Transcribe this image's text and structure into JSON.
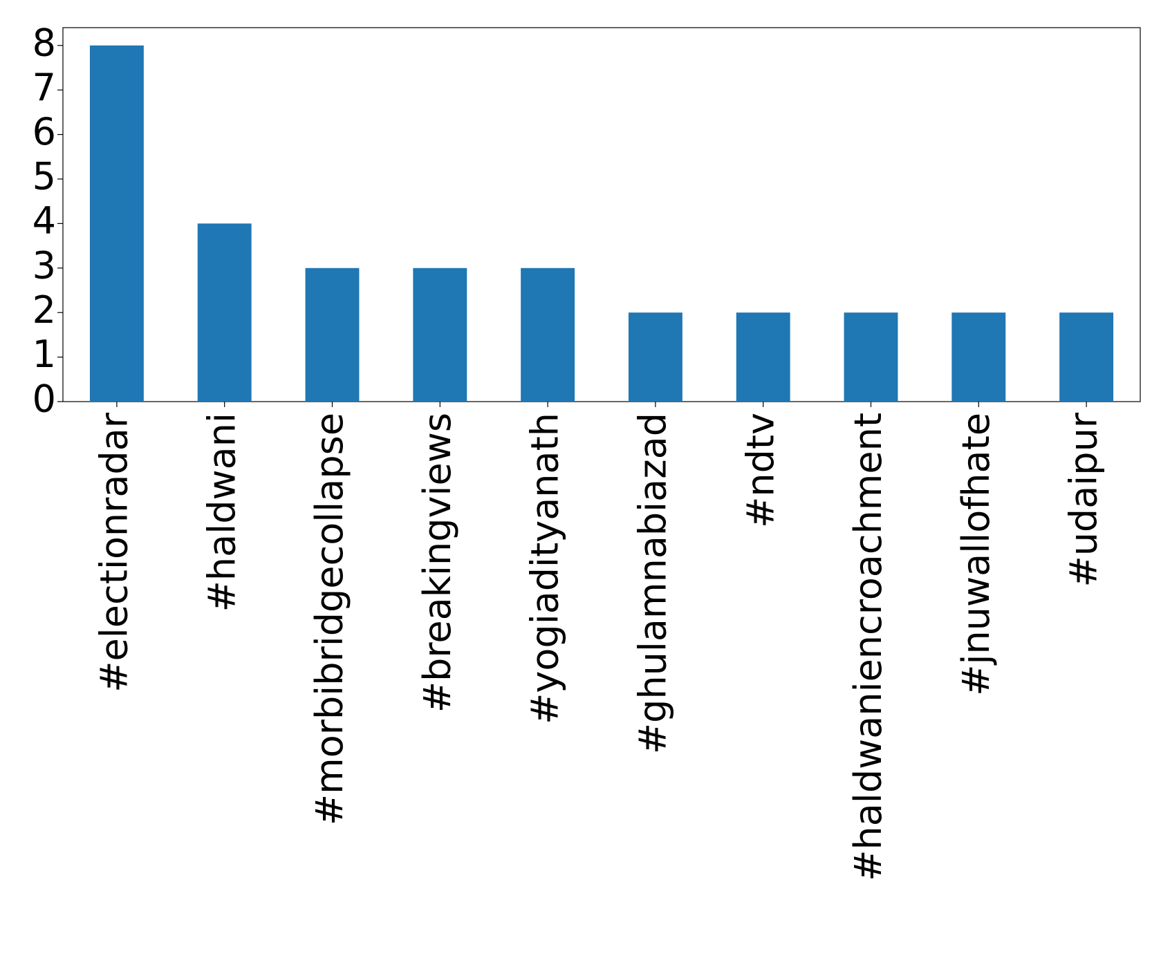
{
  "chart_data": {
    "type": "bar",
    "categories": [
      "#electionradar",
      "#haldwani",
      "#morbibridgecollapse",
      "#breakingviews",
      "#yogiadityanath",
      "#ghulamnabiazad",
      "#ndtv",
      "#haldwaniencroachment",
      "#jnuwallofhate",
      "#udaipur"
    ],
    "values": [
      8,
      4,
      3,
      3,
      3,
      2,
      2,
      2,
      2,
      2
    ],
    "color": "#1f77b4",
    "ylim": [
      0,
      8.4
    ],
    "yticks": [
      0,
      1,
      2,
      3,
      4,
      5,
      6,
      7,
      8
    ],
    "grid": false
  }
}
